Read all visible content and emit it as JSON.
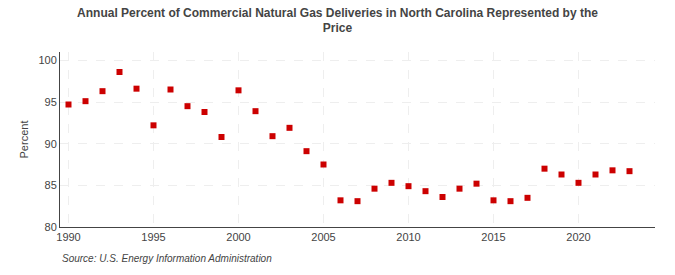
{
  "chart_data": {
    "type": "scatter",
    "title": "Annual Percent of Commercial Natural Gas Deliveries in North Carolina Represented by the\nPrice",
    "y_label": "Percent",
    "annotations": [
      "Source: U.S. Energy Information Administration"
    ],
    "x": [
      1990,
      1991,
      1992,
      1993,
      1994,
      1995,
      1996,
      1997,
      1998,
      1999,
      2000,
      2001,
      2002,
      2003,
      2004,
      2005,
      2006,
      2007,
      2008,
      2009,
      2010,
      2011,
      2012,
      2013,
      2014,
      2015,
      2016,
      2017,
      2018,
      2019,
      2020,
      2021,
      2022,
      2023
    ],
    "values": [
      94.7,
      95.1,
      96.3,
      98.6,
      96.6,
      92.2,
      96.5,
      94.5,
      93.8,
      90.8,
      96.4,
      93.9,
      90.9,
      91.9,
      89.1,
      87.5,
      83.2,
      83.1,
      84.6,
      85.3,
      84.9,
      84.3,
      83.6,
      84.6,
      85.2,
      83.2,
      83.1,
      83.5,
      87.0,
      86.3,
      85.3,
      86.3,
      86.8,
      86.7
    ],
    "color": "#cc0000",
    "marker": "square",
    "xlim": [
      1989.5,
      2024.5
    ],
    "xticks": [
      1990,
      1995,
      2000,
      2005,
      2010,
      2015,
      2020
    ],
    "ylim": [
      80,
      101
    ],
    "yticks": [
      80,
      85,
      90,
      95,
      100
    ],
    "grid": true
  }
}
